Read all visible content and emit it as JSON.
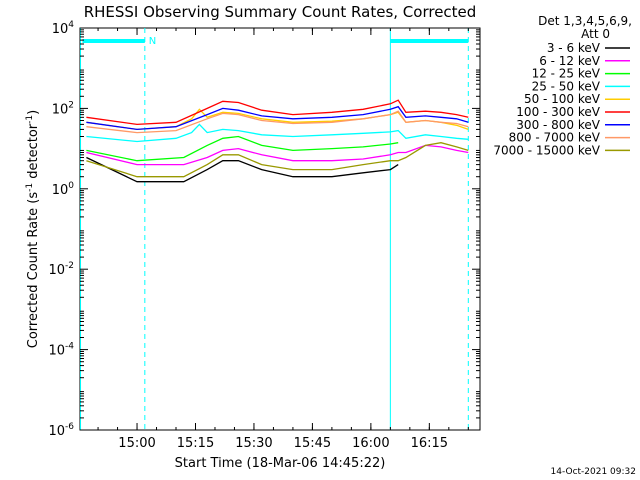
{
  "chart_data": {
    "type": "line",
    "title": "RHESSI Observing Summary Count Rates, Corrected",
    "xlabel": "Start Time (18-Mar-06 14:45:22)",
    "ylabel_prefix": "Corrected Count Rate (s",
    "ylabel_sup1": "-1",
    "ylabel_mid": " detector",
    "ylabel_sup2": "-1",
    "ylabel_suffix": ")",
    "y_scale": "log",
    "ylim": [
      1e-06,
      10000
    ],
    "xlim": [
      "14:45:22",
      "16:28:00"
    ],
    "x_ticks": [
      "15:00",
      "15:15",
      "15:30",
      "15:45",
      "16:00",
      "16:15"
    ],
    "y_ticks": [
      {
        "value": 1e-06,
        "base": "10",
        "exp": "-6"
      },
      {
        "value": 0.0001,
        "base": "10",
        "exp": "-4"
      },
      {
        "value": 0.01,
        "base": "10",
        "exp": "-2"
      },
      {
        "value": 1,
        "base": "10",
        "exp": "0"
      },
      {
        "value": 100,
        "base": "10",
        "exp": "2"
      },
      {
        "value": 10000,
        "base": "10",
        "exp": "4"
      }
    ],
    "legend_header_1": "Det 1,3,4,5,6,9,",
    "legend_header_2": "Att 0",
    "legend_position": "right",
    "series": [
      {
        "name": "3 - 6 keV",
        "color": "#000000",
        "x": [
          "14:47",
          "15:00",
          "15:12",
          "15:18",
          "15:22",
          "15:26",
          "15:32",
          "15:40",
          "15:50",
          "15:58",
          "16:05",
          "16:07"
        ],
        "y": [
          6,
          1.5,
          1.5,
          3,
          5,
          5,
          3,
          2,
          2,
          2.5,
          3,
          4
        ]
      },
      {
        "name": "6 - 12 keV",
        "color": "#ff00ff",
        "x": [
          "14:47",
          "15:00",
          "15:12",
          "15:18",
          "15:22",
          "15:26",
          "15:32",
          "15:40",
          "15:50",
          "15:58",
          "16:05",
          "16:07",
          "16:09",
          "16:14",
          "16:18",
          "16:22",
          "16:25"
        ],
        "y": [
          8,
          4,
          4,
          6,
          9,
          10,
          7,
          5,
          5,
          5.5,
          7,
          8,
          8,
          12,
          11,
          9,
          8
        ]
      },
      {
        "name": "12 - 25 keV",
        "color": "#00ff00",
        "x": [
          "14:47",
          "15:00",
          "15:12",
          "15:18",
          "15:22",
          "15:26",
          "15:32",
          "15:40",
          "15:50",
          "15:58",
          "16:05",
          "16:07"
        ],
        "y": [
          9,
          5,
          6,
          12,
          18,
          20,
          12,
          9,
          10,
          11,
          13,
          14
        ]
      },
      {
        "name": "25 - 50 keV",
        "color": "#00ffff",
        "x": [
          "14:47",
          "15:00",
          "15:10",
          "15:14",
          "15:16",
          "15:18",
          "15:22",
          "15:26",
          "15:32",
          "15:40",
          "15:50",
          "15:58",
          "16:05",
          "16:07",
          "16:09",
          "16:14",
          "16:18",
          "16:22",
          "16:25"
        ],
        "y": [
          20,
          15,
          18,
          25,
          40,
          25,
          30,
          28,
          22,
          20,
          22,
          24,
          26,
          28,
          18,
          22,
          20,
          18,
          17
        ]
      },
      {
        "name": "50 - 100 keV",
        "color": "#ffcc00",
        "x": [
          "14:47",
          "15:00",
          "15:10",
          "15:14",
          "15:16",
          "15:18",
          "15:22",
          "15:26",
          "15:32",
          "15:40",
          "15:50",
          "15:58",
          "16:05",
          "16:07",
          "16:09",
          "16:14",
          "16:18",
          "16:22",
          "16:25"
        ],
        "y": [
          45,
          30,
          35,
          55,
          95,
          60,
          80,
          75,
          55,
          45,
          48,
          55,
          70,
          80,
          45,
          50,
          45,
          38,
          30
        ]
      },
      {
        "name": "100 - 300 keV",
        "color": "#ff0000",
        "x": [
          "14:47",
          "15:00",
          "15:10",
          "15:18",
          "15:22",
          "15:26",
          "15:32",
          "15:40",
          "15:50",
          "15:58",
          "16:05",
          "16:07",
          "16:09",
          "16:14",
          "16:18",
          "16:22",
          "16:25"
        ],
        "y": [
          60,
          40,
          45,
          100,
          150,
          140,
          90,
          70,
          80,
          95,
          130,
          160,
          80,
          85,
          80,
          70,
          60
        ]
      },
      {
        "name": "300 - 800 keV",
        "color": "#0000ff",
        "x": [
          "14:47",
          "15:00",
          "15:10",
          "15:18",
          "15:22",
          "15:26",
          "15:32",
          "15:40",
          "15:50",
          "15:58",
          "16:05",
          "16:07",
          "16:09",
          "16:14",
          "16:18",
          "16:22",
          "16:25"
        ],
        "y": [
          45,
          30,
          35,
          70,
          100,
          90,
          65,
          55,
          60,
          70,
          95,
          110,
          60,
          65,
          60,
          55,
          45
        ]
      },
      {
        "name": "800 - 7000 keV",
        "color": "#ff9966",
        "x": [
          "14:47",
          "15:00",
          "15:10",
          "15:18",
          "15:22",
          "15:26",
          "15:32",
          "15:40",
          "15:50",
          "15:58",
          "16:05",
          "16:07",
          "16:09",
          "16:14",
          "16:18",
          "16:22",
          "16:25"
        ],
        "y": [
          35,
          25,
          28,
          55,
          75,
          70,
          50,
          42,
          45,
          55,
          70,
          85,
          45,
          50,
          45,
          42,
          35
        ]
      },
      {
        "name": "7000 - 15000 keV",
        "color": "#999900",
        "x": [
          "14:47",
          "15:00",
          "15:12",
          "15:18",
          "15:22",
          "15:26",
          "15:32",
          "15:40",
          "15:50",
          "15:58",
          "16:05",
          "16:07",
          "16:09",
          "16:14",
          "16:18",
          "16:22",
          "16:25"
        ],
        "y": [
          5,
          2,
          2,
          4,
          7,
          7,
          4,
          3,
          3,
          4,
          5,
          5,
          6,
          12,
          14,
          11,
          9
        ]
      }
    ],
    "flags": {
      "color": "#00ffff",
      "bars": [
        {
          "x0": "14:46",
          "x1": "15:02"
        },
        {
          "x0": "16:05",
          "x1": "16:25"
        }
      ],
      "label": "N",
      "label_x": "15:03",
      "dashed_lines": [
        "15:02",
        "16:25"
      ],
      "solid_lines": [
        "14:45:30",
        "16:05"
      ]
    },
    "timestamp": "14-Oct-2021 09:32"
  }
}
